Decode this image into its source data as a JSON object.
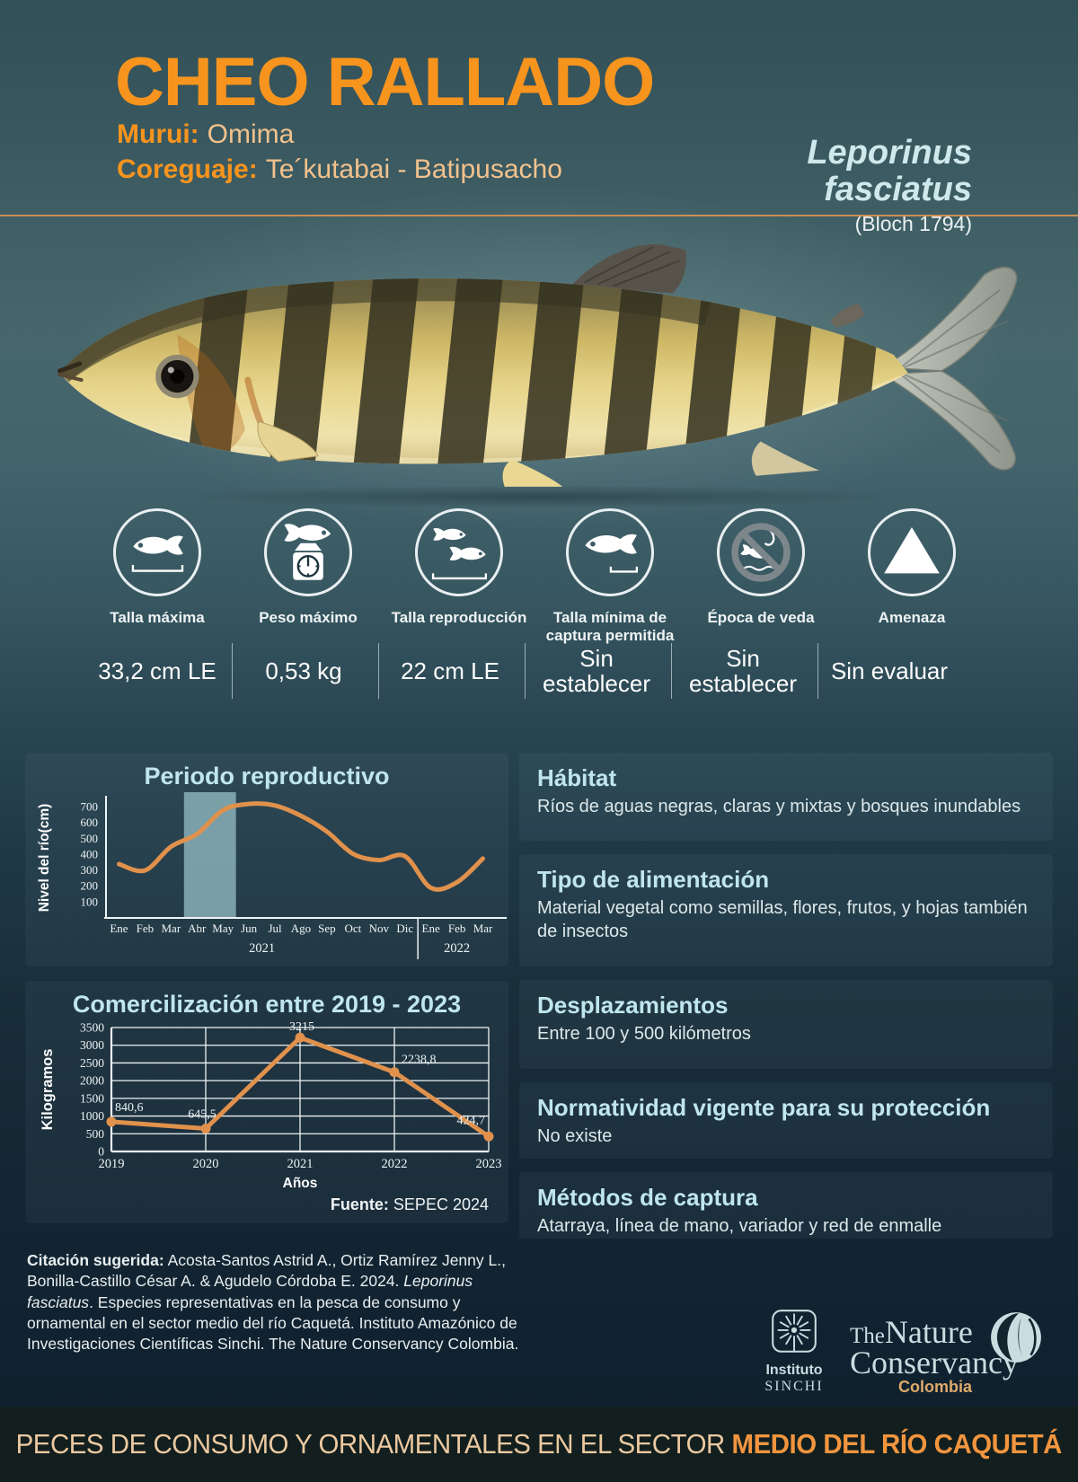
{
  "header": {
    "title": "CHEO RALLADO",
    "common_names": [
      {
        "label": "Murui:",
        "value": "Omima"
      },
      {
        "label": "Coreguaje:",
        "value": "Te´kutabai - Batipusacho"
      }
    ],
    "scientific_name_line1": "Leporinus",
    "scientific_name_line2": "fasciatus",
    "author": "(Bloch 1794)"
  },
  "stats": [
    {
      "icon": "fish-measure-icon",
      "label": "Talla máxima",
      "value": "33,2 cm LE"
    },
    {
      "icon": "fish-on-scale-icon",
      "label": "Peso máximo",
      "value": "0,53 kg"
    },
    {
      "icon": "two-fish-measure-icon",
      "label": "Talla reproducción",
      "value": "22 cm LE"
    },
    {
      "icon": "fish-min-measure-icon",
      "label": "Talla mínima de captura permitida",
      "value": "Sin establecer"
    },
    {
      "icon": "no-fishing-icon",
      "label": "Época de veda",
      "value": "Sin establecer"
    },
    {
      "icon": "warning-triangle-icon",
      "label": "Amenaza",
      "value": "Sin evaluar"
    }
  ],
  "chart_data": [
    {
      "type": "line",
      "title": "Periodo reproductivo",
      "ylabel": "Nivel del río(cm)",
      "x": [
        "Ene",
        "Feb",
        "Mar",
        "Abr",
        "May",
        "Jun",
        "Jul",
        "Ago",
        "Sep",
        "Oct",
        "Nov",
        "Dic",
        "Ene",
        "Feb",
        "Mar"
      ],
      "year_groups": [
        {
          "label": "2021",
          "from": 0,
          "to": 11
        },
        {
          "label": "2022",
          "from": 12,
          "to": 14
        }
      ],
      "values": [
        340,
        300,
        450,
        530,
        680,
        720,
        710,
        645,
        545,
        405,
        365,
        390,
        190,
        225,
        375
      ],
      "yticks": [
        100,
        200,
        300,
        400,
        500,
        600,
        700
      ],
      "ylim": [
        0,
        760
      ],
      "grid": false,
      "highlight_band": {
        "from": "Abr",
        "to": "May"
      },
      "legend_position": "none"
    },
    {
      "type": "line",
      "title": "Comercilización entre 2019 - 2023",
      "ylabel": "Kilogramos",
      "xlabel": "Años",
      "x": [
        "2019",
        "2020",
        "2021",
        "2022",
        "2023"
      ],
      "values": [
        840.6,
        645.5,
        3215,
        2238.8,
        424.7
      ],
      "point_labels": [
        "840,6",
        "645,5",
        "3215",
        "2238,8",
        "424,7"
      ],
      "yticks": [
        0,
        500,
        1000,
        1500,
        2000,
        2500,
        3000,
        3500
      ],
      "ylim": [
        0,
        3500
      ],
      "grid": true,
      "source_label": "Fuente:",
      "source": "SEPEC 2024",
      "legend_position": "none"
    }
  ],
  "info_cards": [
    {
      "title": "Hábitat",
      "body": "Ríos de aguas negras, claras y mixtas y bosques inundables"
    },
    {
      "title": "Tipo de alimentación",
      "body": "Material vegetal como semillas, flores, frutos, y hojas también de insectos"
    },
    {
      "title": "Desplazamientos",
      "body": "Entre 100 y 500 kilómetros"
    },
    {
      "title": "Normatividad vigente para su protección",
      "body": "No existe"
    },
    {
      "title": "Métodos de captura",
      "body": "Atarraya, línea de mano, variador y red de enmalle"
    }
  ],
  "citation": {
    "label": "Citación sugerida:",
    "before_italic": " Acosta-Santos Astrid A., Ortiz Ramírez Jenny L., Bonilla-Castillo César A. & Agudelo Córdoba E. 2024. ",
    "italic": "Leporinus fasciatus",
    "after_italic": ". Especies representativas en la pesca de consumo y ornamental en el sector medio del  río Caquetá. Instituto Amazónico de Investigaciones Científicas Sinchi. The Nature Conservancy Colombia."
  },
  "logos": {
    "sinchi_line1": "Instituto",
    "sinchi_line2": "SINCHI",
    "tnc_word1": "The",
    "tnc_word2": "Nature",
    "tnc_word3": "Conservancy",
    "tnc_country": "Colombia"
  },
  "footer": {
    "text_regular": "PECES DE CONSUMO Y ORNAMENTALES EN EL SECTOR ",
    "text_bold": "MEDIO DEL RÍO CAQUETÁ"
  },
  "colors": {
    "accent_orange": "#F7941E",
    "value_tan": "#F2C28D",
    "sci_name": "#CFE8EC",
    "rule": "#CD8E54",
    "chart_line": "#E0914C",
    "band": "#8FB7BE",
    "card_title": "#BFE6EC",
    "body_text": "#DCE8EA",
    "footer_tan": "#ECC9A1",
    "footer_orange": "#F2953F",
    "logo_color": "#C8DDE0",
    "tnc_colombia": "#E0AA6C"
  }
}
